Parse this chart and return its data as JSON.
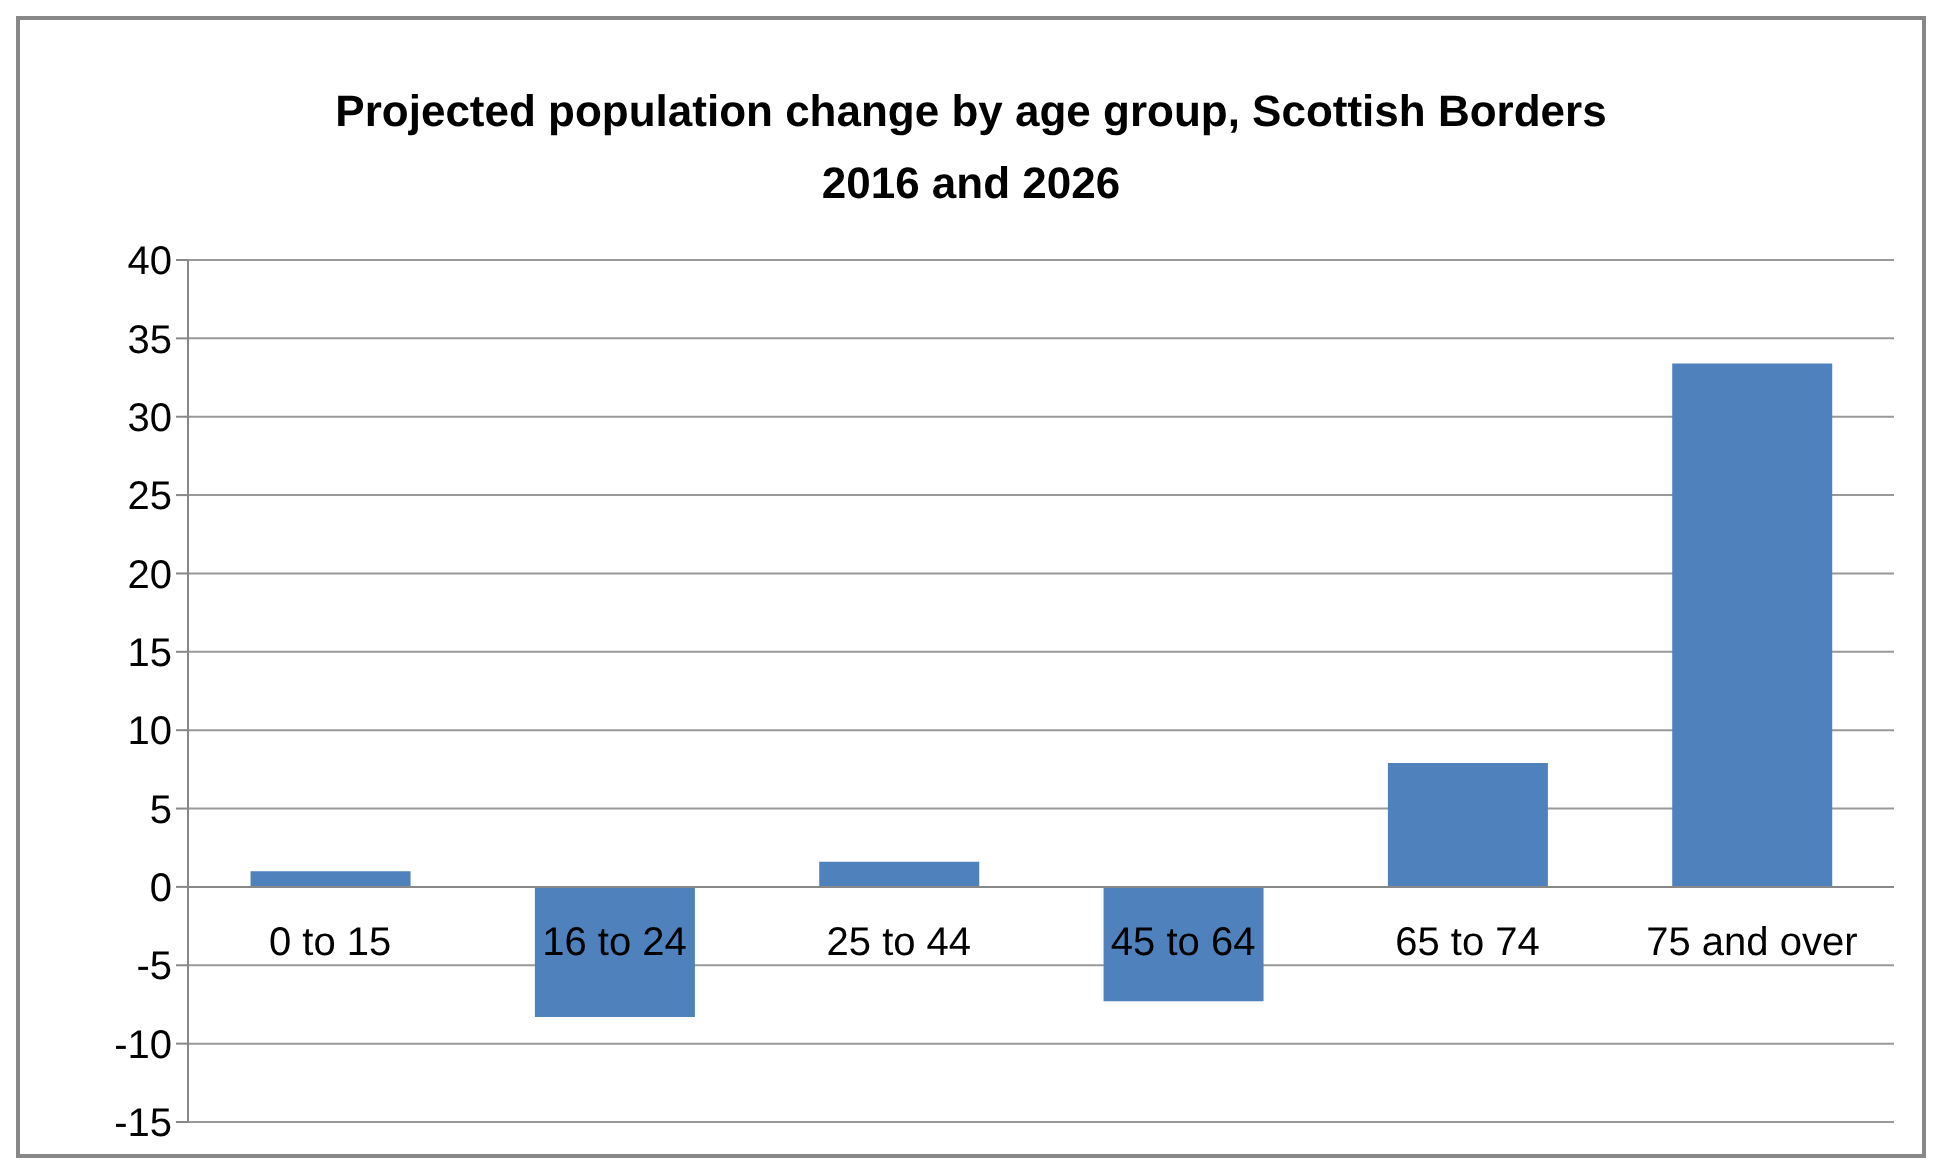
{
  "chart_data": {
    "type": "bar",
    "title": "Projected population change by age group, Scottish Borders\n2016 and 2026",
    "categories": [
      "0 to 15",
      "16 to 24",
      "25 to 44",
      "45 to 64",
      "65 to 74",
      "75 and over"
    ],
    "values": [
      1.0,
      -8.3,
      1.6,
      -7.3,
      7.9,
      33.4
    ],
    "color": "#4f81bd",
    "ylim": [
      -15,
      40
    ],
    "yticks": [
      -15,
      -10,
      -5,
      0,
      5,
      10,
      15,
      20,
      25,
      30,
      35,
      40
    ],
    "grid": "y"
  }
}
